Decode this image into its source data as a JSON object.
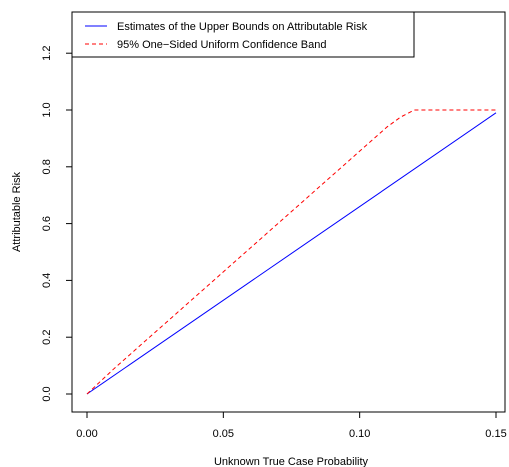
{
  "chart_data": {
    "type": "line",
    "title": "",
    "xlabel": "Unknown True Case Probability",
    "ylabel": "Attributable Risk",
    "xlim": [
      0.0,
      0.15
    ],
    "ylim": [
      0.0,
      1.3
    ],
    "x_ticks": [
      0.0,
      0.05,
      0.1,
      0.15
    ],
    "x_tick_labels": [
      "0.00",
      "0.05",
      "0.10",
      "0.15"
    ],
    "y_ticks": [
      0.0,
      0.2,
      0.4,
      0.6,
      0.8,
      1.0,
      1.2
    ],
    "y_tick_labels": [
      "0.0",
      "0.2",
      "0.4",
      "0.6",
      "0.8",
      "1.0",
      "1.2"
    ],
    "grid": false,
    "legend_position": "top-left",
    "series": [
      {
        "name": "Estimates of the Upper Bounds on Attributable Risk",
        "color": "#0000ff",
        "line_style": "solid",
        "x": [
          0.0,
          0.15
        ],
        "y": [
          0.0,
          0.99
        ]
      },
      {
        "name": "95% One−Sided Uniform Confidence Band",
        "color": "#ff0000",
        "line_style": "dashed",
        "x": [
          0.0,
          0.01,
          0.02,
          0.03,
          0.04,
          0.05,
          0.06,
          0.07,
          0.08,
          0.09,
          0.1,
          0.11,
          0.115,
          0.12,
          0.13,
          0.14,
          0.15
        ],
        "y": [
          0.0,
          0.09,
          0.175,
          0.26,
          0.345,
          0.43,
          0.515,
          0.6,
          0.685,
          0.77,
          0.855,
          0.94,
          0.975,
          1.0,
          1.0,
          1.0,
          1.0
        ]
      }
    ]
  }
}
